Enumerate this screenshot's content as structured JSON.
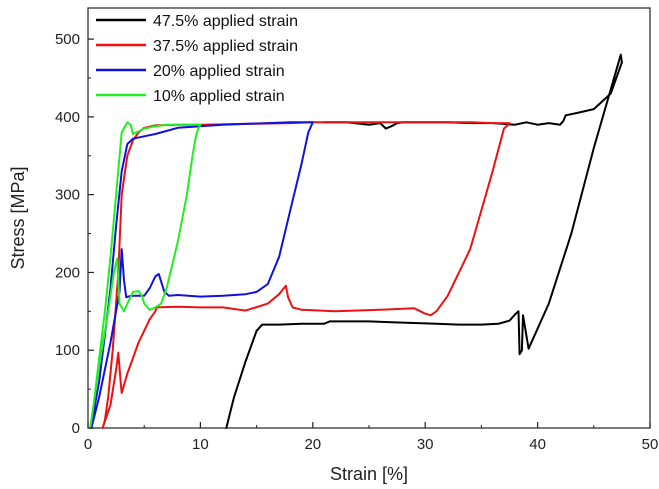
{
  "chart_data": {
    "type": "line",
    "xlabel": "Strain [%]",
    "ylabel": "Stress [MPa]",
    "xlim": [
      0,
      50
    ],
    "ylim": [
      0,
      540
    ],
    "xticks": [
      0,
      10,
      20,
      30,
      40,
      50
    ],
    "yticks": [
      0,
      100,
      200,
      300,
      400,
      500
    ],
    "grid": false,
    "legend": "top-left",
    "series": [
      {
        "name": "47.5% applied strain",
        "color": "#000000",
        "x": [
          12.3,
          13.0,
          14.0,
          15.0,
          15.5,
          17.0,
          19.0,
          21.0,
          21.5,
          23.0,
          25.0,
          27.0,
          29.0,
          31.0,
          33.0,
          35.0,
          36.5,
          37.5,
          38.0,
          38.3,
          38.4,
          38.6,
          38.7,
          39.2,
          41.0,
          43.0,
          45.0,
          47.0,
          47.4,
          47.5,
          46.5,
          45.0,
          43.5,
          42.5,
          42.3,
          42.0,
          41.0,
          40.0,
          39.0,
          38.0,
          36.0,
          34.0,
          32.0,
          30.0,
          28.0,
          27.5,
          27.0,
          26.5,
          26.0,
          25.0,
          23.0,
          21.0
        ],
        "y": [
          0,
          40,
          85,
          125,
          133,
          133,
          134,
          134,
          137,
          137,
          137,
          136,
          135,
          134,
          133,
          133,
          134,
          138,
          146,
          150,
          95,
          100,
          145,
          102,
          160,
          250,
          360,
          460,
          480,
          470,
          430,
          410,
          405,
          402,
          395,
          390,
          392,
          390,
          393,
          390,
          392,
          392,
          393,
          393,
          393,
          392,
          388,
          385,
          392,
          390,
          393,
          393
        ]
      },
      {
        "name": "37.5% applied strain",
        "color": "#ee1111",
        "x": [
          1.3,
          2.0,
          2.5,
          2.7,
          2.9,
          3.0,
          3.5,
          4.0,
          4.5,
          5.0,
          5.5,
          6.0,
          6.1,
          8.0,
          10.0,
          12.0,
          14.0,
          16.0,
          17.0,
          17.6,
          17.8,
          18.2,
          19.0,
          22.0,
          26.0,
          29.0,
          30.0,
          30.5,
          31.0,
          32.0,
          34.0,
          36.0,
          37.0,
          37.4,
          37.5,
          37.0,
          36.0,
          34.0,
          32.0,
          30.0,
          28.0,
          26.0,
          24.0,
          22.0,
          20.0,
          18.0,
          14.0,
          10.0,
          8.0,
          6.0,
          5.0,
          4.5,
          4.0,
          3.5,
          3.0,
          2.7,
          2.2,
          1.8,
          1.5,
          1.3
        ],
        "y": [
          0,
          30,
          75,
          97,
          60,
          45,
          70,
          90,
          110,
          125,
          140,
          150,
          155,
          156,
          155,
          155,
          151,
          160,
          172,
          183,
          168,
          155,
          152,
          150,
          152,
          154,
          147,
          145,
          150,
          170,
          230,
          330,
          385,
          390,
          392,
          392,
          392,
          393,
          393,
          393,
          393,
          393,
          393,
          393,
          393,
          392,
          391,
          390,
          390,
          389,
          386,
          380,
          370,
          350,
          300,
          200,
          100,
          40,
          10,
          0
        ]
      },
      {
        "name": "20% applied strain",
        "color": "#1111dd",
        "x": [
          0.3,
          1.0,
          2.0,
          2.8,
          3.0,
          3.2,
          3.4,
          3.8,
          4.5,
          5.0,
          5.5,
          6.0,
          6.3,
          6.8,
          7.2,
          8.0,
          10.0,
          12.0,
          14.0,
          15.0,
          16.0,
          17.0,
          18.0,
          19.0,
          19.6,
          20.0,
          19.0,
          18.0,
          16.0,
          14.0,
          12.0,
          10.0,
          8.0,
          6.0,
          5.0,
          4.0,
          3.5,
          3.0,
          2.5,
          2.0,
          1.5,
          1.0,
          0.5,
          0.3
        ],
        "y": [
          0,
          40,
          110,
          175,
          230,
          190,
          168,
          170,
          170,
          170,
          180,
          195,
          198,
          175,
          170,
          171,
          169,
          170,
          172,
          175,
          185,
          220,
          280,
          340,
          380,
          393,
          393,
          393,
          392,
          391,
          390,
          388,
          386,
          378,
          375,
          372,
          365,
          330,
          260,
          180,
          120,
          60,
          20,
          0
        ]
      },
      {
        "name": "10% applied strain",
        "color": "#22ee22",
        "x": [
          0.2,
          1.0,
          1.8,
          2.3,
          2.6,
          2.8,
          3.2,
          3.5,
          4.0,
          4.5,
          4.8,
          5.0,
          5.5,
          6.0,
          6.5,
          7.0,
          8.0,
          8.8,
          9.3,
          9.6,
          9.8,
          10.0,
          9.5,
          9.0,
          8.0,
          7.0,
          6.0,
          5.0,
          4.0,
          3.8,
          3.5,
          3.0,
          2.5,
          2.0,
          1.5,
          1.0,
          0.5,
          0.2
        ],
        "y": [
          0,
          80,
          150,
          200,
          218,
          160,
          150,
          160,
          175,
          176,
          170,
          160,
          152,
          155,
          160,
          180,
          240,
          300,
          350,
          375,
          385,
          390,
          390,
          390,
          390,
          390,
          388,
          385,
          378,
          390,
          393,
          380,
          300,
          220,
          150,
          90,
          30,
          0
        ]
      }
    ]
  }
}
